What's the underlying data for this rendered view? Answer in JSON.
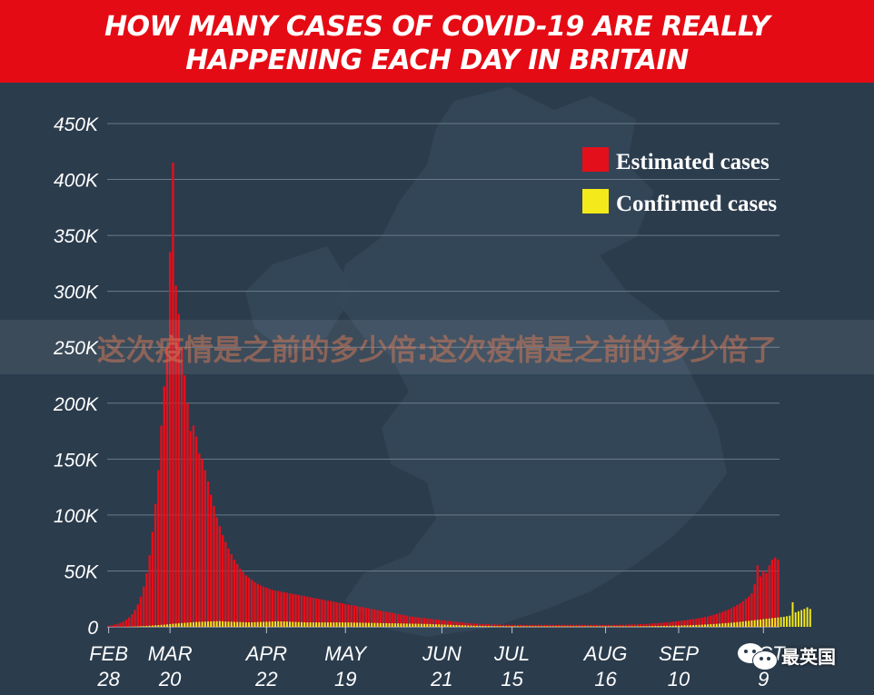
{
  "title": {
    "line1": "HOW MANY CASES OF COVID-19 ARE REALLY",
    "line2": "HAPPENING EACH DAY IN BRITAIN"
  },
  "watermark": "这次疫情是之前的多少倍:这次疫情是之前的多少倍了",
  "corner_mark": {
    "text": "最英国",
    "icon": "wechat-icon"
  },
  "colors": {
    "banner": "#e50b14",
    "background": "#2b3c4d",
    "estimated": "#e3101b",
    "confirmed": "#f4ea1b",
    "grid": "#6c7a89",
    "text": "#ffffff"
  },
  "chart_data": {
    "type": "bar",
    "title": "HOW MANY CASES OF COVID-19 ARE REALLY HAPPENING EACH DAY IN BRITAIN",
    "xlabel": "",
    "ylabel": "",
    "ylim": [
      0,
      450000
    ],
    "yticks": [
      {
        "value": 0,
        "label": "0"
      },
      {
        "value": 50000,
        "label": "50K"
      },
      {
        "value": 100000,
        "label": "100K"
      },
      {
        "value": 150000,
        "label": "150K"
      },
      {
        "value": 200000,
        "label": "200K"
      },
      {
        "value": 250000,
        "label": "250K"
      },
      {
        "value": 300000,
        "label": "300K"
      },
      {
        "value": 350000,
        "label": "350K"
      },
      {
        "value": 400000,
        "label": "400K"
      },
      {
        "value": 450000,
        "label": "450K"
      }
    ],
    "xticks": [
      {
        "month": "FEB",
        "day": "28",
        "day_index": 0
      },
      {
        "month": "MAR",
        "day": "20",
        "day_index": 21
      },
      {
        "month": "APR",
        "day": "22",
        "day_index": 54
      },
      {
        "month": "MAY",
        "day": "19",
        "day_index": 81
      },
      {
        "month": "JUN",
        "day": "21",
        "day_index": 114
      },
      {
        "month": "JUL",
        "day": "15",
        "day_index": 138
      },
      {
        "month": "AUG",
        "day": "16",
        "day_index": 170
      },
      {
        "month": "SEP",
        "day": "10",
        "day_index": 195
      },
      {
        "month": "OCT",
        "day": "9",
        "day_index": 224
      }
    ],
    "grid": true,
    "legend_position": "top-right",
    "series": [
      {
        "name": "Estimated cases",
        "color": "#e3101b",
        "values": [
          1000,
          1400,
          1900,
          2600,
          3500,
          4700,
          6300,
          8400,
          11200,
          15000,
          20000,
          27000,
          36000,
          48000,
          64000,
          85000,
          110000,
          140000,
          180000,
          215000,
          250000,
          335000,
          415000,
          305000,
          280000,
          250000,
          225000,
          200000,
          175000,
          180000,
          170000,
          155000,
          150000,
          140000,
          130000,
          118000,
          108000,
          98000,
          90000,
          82000,
          76000,
          70000,
          65000,
          60000,
          56000,
          52000,
          49000,
          46000,
          44000,
          42000,
          40000,
          38500,
          37000,
          36000,
          35000,
          34000,
          33000,
          32500,
          32000,
          31500,
          31000,
          30500,
          30000,
          29500,
          29000,
          28500,
          28000,
          27500,
          27000,
          26500,
          26000,
          25500,
          25000,
          24500,
          24000,
          23500,
          23000,
          22500,
          22000,
          21500,
          21000,
          20500,
          20000,
          19500,
          19000,
          18500,
          18000,
          17500,
          17000,
          16500,
          16000,
          15500,
          15000,
          14500,
          14000,
          13500,
          13000,
          12500,
          12000,
          11500,
          11000,
          10500,
          10000,
          9500,
          9000,
          8700,
          8400,
          8100,
          7800,
          7500,
          7200,
          6900,
          6600,
          6300,
          6000,
          5700,
          5400,
          5100,
          4800,
          4500,
          4200,
          3900,
          3600,
          3400,
          3200,
          3000,
          2800,
          2600,
          2500,
          2400,
          2300,
          2200,
          2100,
          2000,
          1950,
          1900,
          1850,
          1800,
          1750,
          1700,
          1700,
          1700,
          1700,
          1700,
          1700,
          1700,
          1700,
          1700,
          1700,
          1700,
          1700,
          1700,
          1700,
          1700,
          1700,
          1700,
          1700,
          1700,
          1700,
          1700,
          1700,
          1700,
          1700,
          1700,
          1700,
          1700,
          1700,
          1700,
          1700,
          1700,
          1700,
          1700,
          1700,
          1700,
          1750,
          1800,
          1850,
          1900,
          2000,
          2100,
          2200,
          2300,
          2400,
          2500,
          2600,
          2800,
          3000,
          3200,
          3400,
          3600,
          3800,
          4000,
          4300,
          4600,
          4900,
          5200,
          5500,
          5800,
          6200,
          6600,
          7000,
          7400,
          7800,
          8200,
          8800,
          9400,
          10000,
          10800,
          11600,
          12500,
          13400,
          14400,
          15500,
          16700,
          18000,
          19500,
          21000,
          23000,
          25000,
          27000,
          30000,
          38000,
          55000,
          45000,
          50000,
          48000,
          55000,
          60000,
          62000,
          60000
        ]
      },
      {
        "name": "Confirmed cases",
        "color": "#f4ea1b",
        "values": [
          10,
          15,
          20,
          30,
          50,
          70,
          100,
          150,
          200,
          300,
          400,
          550,
          700,
          850,
          1000,
          1200,
          1400,
          1600,
          1800,
          2000,
          2200,
          2500,
          2800,
          3000,
          3200,
          3400,
          3600,
          3800,
          4000,
          4200,
          4400,
          4500,
          4600,
          4700,
          4800,
          4900,
          5000,
          5100,
          5200,
          5000,
          4800,
          4700,
          4600,
          4500,
          4400,
          4300,
          4200,
          4100,
          4000,
          4100,
          4200,
          4300,
          4400,
          4500,
          4600,
          4700,
          4800,
          4900,
          5000,
          4900,
          4800,
          4700,
          4600,
          4500,
          4400,
          4300,
          4200,
          4100,
          4000,
          4000,
          4000,
          4000,
          4000,
          4000,
          4000,
          4000,
          4000,
          4000,
          4000,
          4000,
          4000,
          4000,
          3950,
          3900,
          3850,
          3800,
          3750,
          3700,
          3650,
          3600,
          3550,
          3500,
          3450,
          3400,
          3350,
          3300,
          3250,
          3200,
          3150,
          3100,
          3050,
          3000,
          2950,
          2900,
          2850,
          2800,
          2750,
          2700,
          2650,
          2600,
          2500,
          2400,
          2300,
          2200,
          2100,
          2000,
          1900,
          1800,
          1700,
          1600,
          1500,
          1400,
          1300,
          1200,
          1100,
          1000,
          950,
          900,
          850,
          800,
          750,
          700,
          680,
          660,
          640,
          620,
          600,
          590,
          580,
          570,
          560,
          550,
          540,
          530,
          520,
          510,
          500,
          500,
          500,
          500,
          500,
          500,
          500,
          500,
          500,
          500,
          500,
          500,
          500,
          500,
          500,
          500,
          500,
          500,
          500,
          500,
          500,
          500,
          500,
          500,
          500,
          500,
          500,
          500,
          500,
          500,
          500,
          500,
          500,
          520,
          540,
          560,
          580,
          600,
          630,
          660,
          700,
          740,
          780,
          820,
          870,
          920,
          980,
          1040,
          1100,
          1170,
          1240,
          1320,
          1400,
          1500,
          1600,
          1700,
          1800,
          1950,
          2100,
          2250,
          2400,
          2550,
          2700,
          2900,
          3100,
          3300,
          3500,
          3750,
          4000,
          4250,
          4500,
          4800,
          5100,
          5400,
          5700,
          6000,
          6300,
          6600,
          6900,
          7200,
          7500,
          7800,
          8100,
          8400,
          8700,
          9000,
          9500,
          10000,
          22000,
          13000,
          14000,
          15000,
          16000,
          17500,
          16000
        ]
      }
    ]
  }
}
